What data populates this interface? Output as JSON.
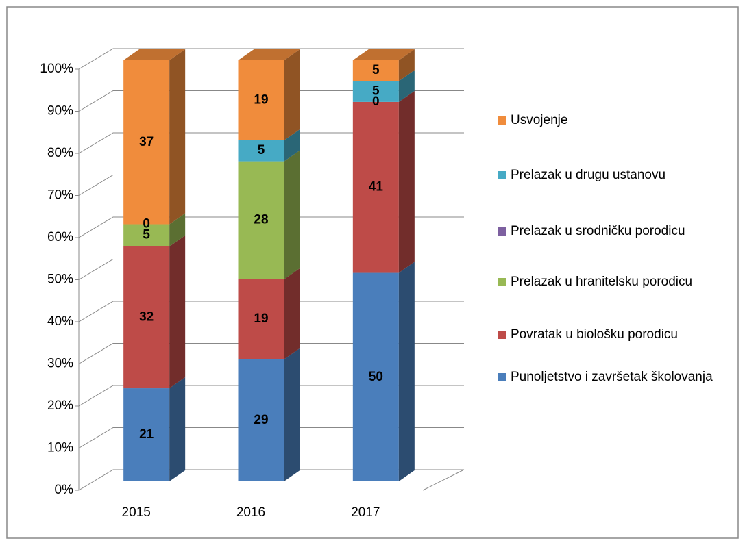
{
  "chart_data": {
    "type": "bar3d_stacked_percent",
    "categories": [
      "2015",
      "2016",
      "2017"
    ],
    "series": [
      {
        "name": "Punoljetstvo i završetak školovanja",
        "color": "#4a7ebb",
        "values": [
          21,
          29,
          50
        ]
      },
      {
        "name": "Povratak u biološku porodicu",
        "color": "#be4b48",
        "values": [
          32,
          19,
          41
        ]
      },
      {
        "name": "Prelazak u hranitelsku porodicu",
        "color": "#98b954",
        "values": [
          5,
          28,
          null
        ]
      },
      {
        "name": "Prelazak u srodničku porodicu",
        "color": "#7d60a0",
        "values": [
          0,
          null,
          0
        ]
      },
      {
        "name": "Prelazak u drugu ustanovu",
        "color": "#46aac5",
        "values": [
          null,
          5,
          5
        ]
      },
      {
        "name": "Usvojenje",
        "color": "#f08c3c",
        "values": [
          37,
          19,
          5
        ]
      }
    ],
    "ylim": [
      0,
      100
    ],
    "yticks": [
      {
        "value": 0,
        "label": "0%"
      },
      {
        "value": 10,
        "label": "10%"
      },
      {
        "value": 20,
        "label": "20%"
      },
      {
        "value": 30,
        "label": "30%"
      },
      {
        "value": 40,
        "label": "40%"
      },
      {
        "value": 50,
        "label": "50%"
      },
      {
        "value": 60,
        "label": "60%"
      },
      {
        "value": 70,
        "label": "70%"
      },
      {
        "value": 80,
        "label": "80%"
      },
      {
        "value": 90,
        "label": "90%"
      },
      {
        "value": 100,
        "label": "100%"
      }
    ],
    "grid": true,
    "legend": "right"
  }
}
